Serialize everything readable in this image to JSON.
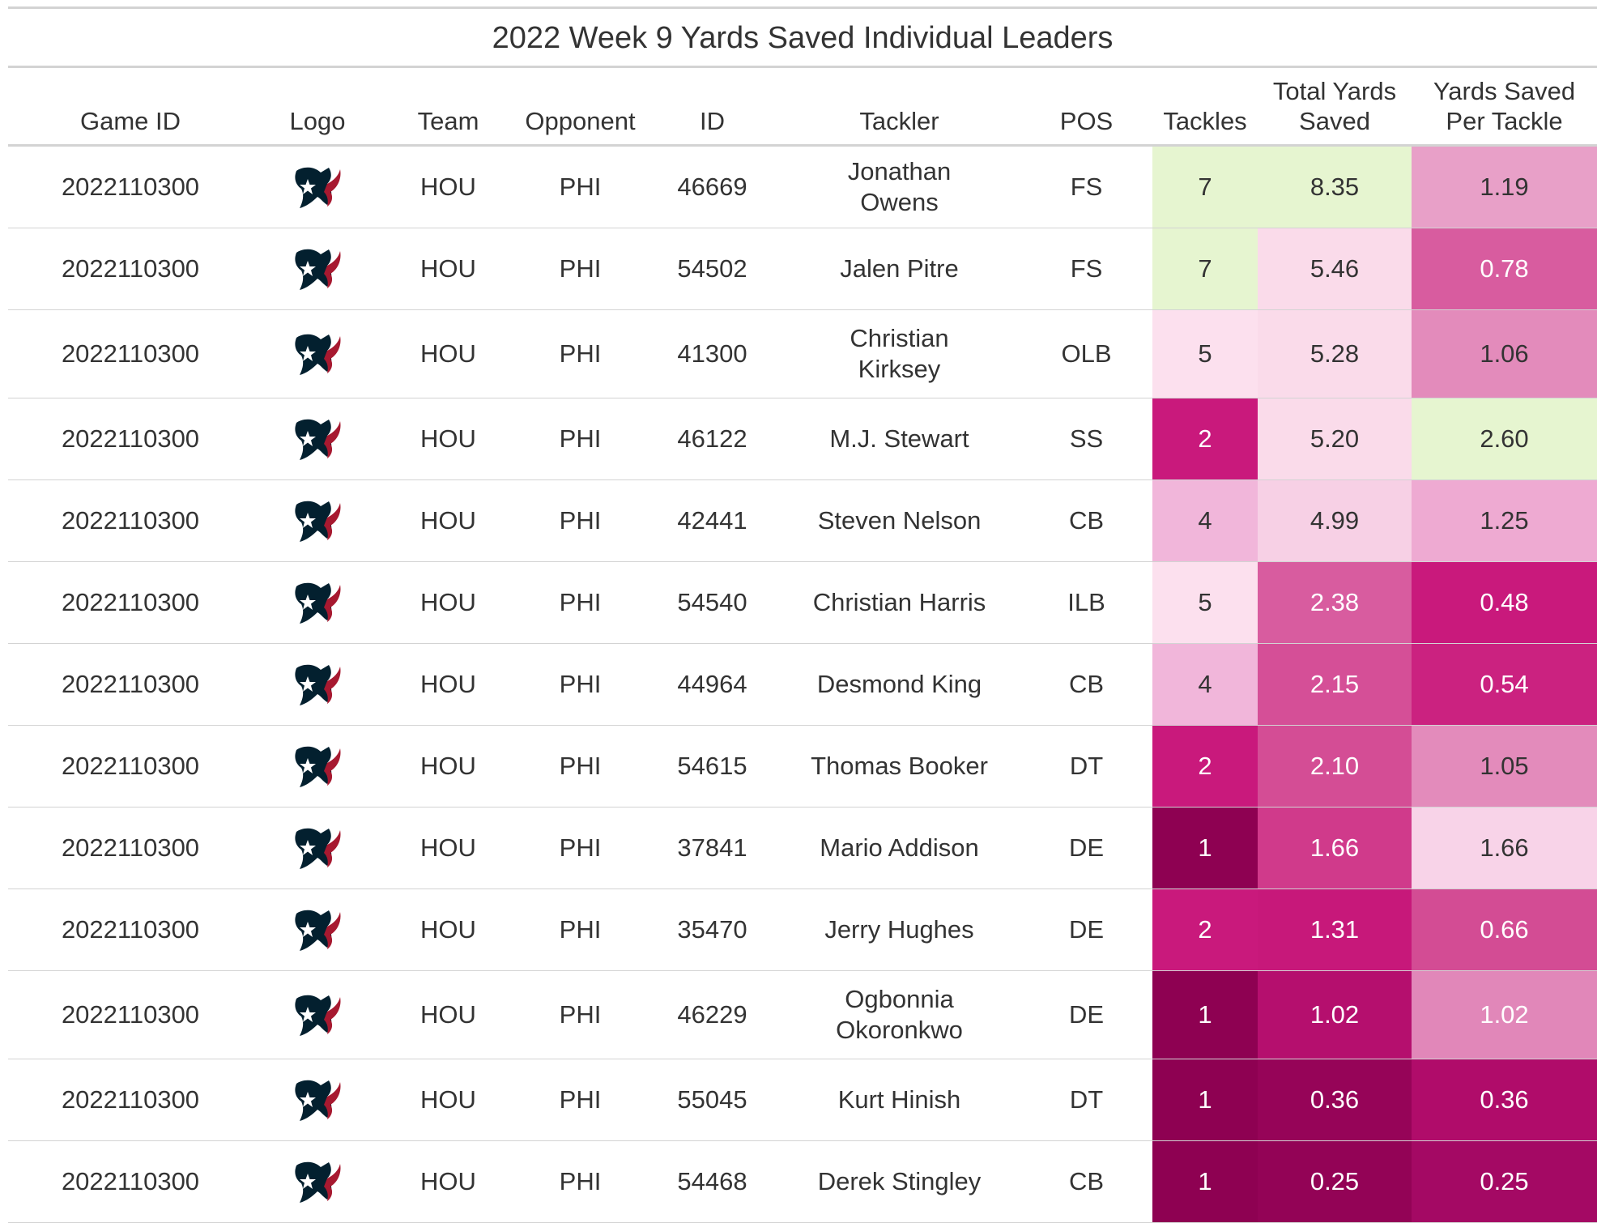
{
  "chart_data": {
    "type": "table",
    "title": "2022 Week 9 Yards Saved Individual Leaders",
    "columns": [
      "Game ID",
      "Logo",
      "Team",
      "Opponent",
      "ID",
      "Tackler",
      "POS",
      "Tackles",
      "Total Yards Saved",
      "Yards Saved Per Tackle"
    ],
    "rows": [
      {
        "game_id": "2022110300",
        "logo": "texans-logo",
        "team": "HOU",
        "opponent": "PHI",
        "id": "46669",
        "tackler": "Jonathan Owens",
        "pos": "FS",
        "tackles": "7",
        "total_yards_saved": "8.35",
        "yards_per_tackle": "1.19",
        "c1": "#e6f5d0",
        "c2": "#e6f5d0",
        "c3": "#e8a0c8",
        "t1": "#333333",
        "t2": "#333333",
        "t3": "#333333"
      },
      {
        "game_id": "2022110300",
        "logo": "texans-logo",
        "team": "HOU",
        "opponent": "PHI",
        "id": "54502",
        "tackler": "Jalen Pitre",
        "pos": "FS",
        "tackles": "7",
        "total_yards_saved": "5.46",
        "yards_per_tackle": "0.78",
        "c1": "#e6f5d0",
        "c2": "#fadbea",
        "c3": "#d85c9f",
        "t1": "#333333",
        "t2": "#333333",
        "t3": "#ffffff"
      },
      {
        "game_id": "2022110300",
        "logo": "texans-logo",
        "team": "HOU",
        "opponent": "PHI",
        "id": "41300",
        "tackler": "Christian Kirksey",
        "pos": "OLB",
        "tackles": "5",
        "total_yards_saved": "5.28",
        "yards_per_tackle": "1.06",
        "c1": "#fce0ee",
        "c2": "#fadbea",
        "c3": "#e38bbb",
        "t1": "#333333",
        "t2": "#333333",
        "t3": "#333333"
      },
      {
        "game_id": "2022110300",
        "logo": "texans-logo",
        "team": "HOU",
        "opponent": "PHI",
        "id": "46122",
        "tackler": "M.J. Stewart",
        "pos": "SS",
        "tackles": "2",
        "total_yards_saved": "5.20",
        "yards_per_tackle": "2.60",
        "c1": "#c9197c",
        "c2": "#fadbea",
        "c3": "#e6f5d0",
        "t1": "#ffffff",
        "t2": "#333333",
        "t3": "#333333"
      },
      {
        "game_id": "2022110300",
        "logo": "texans-logo",
        "team": "HOU",
        "opponent": "PHI",
        "id": "42441",
        "tackler": "Steven Nelson",
        "pos": "CB",
        "tackles": "4",
        "total_yards_saved": "4.99",
        "yards_per_tackle": "1.25",
        "c1": "#f1b6da",
        "c2": "#f7d0e5",
        "c3": "#eeaad2",
        "t1": "#333333",
        "t2": "#333333",
        "t3": "#333333"
      },
      {
        "game_id": "2022110300",
        "logo": "texans-logo",
        "team": "HOU",
        "opponent": "PHI",
        "id": "54540",
        "tackler": "Christian Harris",
        "pos": "ILB",
        "tackles": "5",
        "total_yards_saved": "2.38",
        "yards_per_tackle": "0.48",
        "c1": "#fce0ee",
        "c2": "#d85c9f",
        "c3": "#c9197c",
        "t1": "#333333",
        "t2": "#ffffff",
        "t3": "#ffffff"
      },
      {
        "game_id": "2022110300",
        "logo": "texans-logo",
        "team": "HOU",
        "opponent": "PHI",
        "id": "44964",
        "tackler": "Desmond King",
        "pos": "CB",
        "tackles": "4",
        "total_yards_saved": "2.15",
        "yards_per_tackle": "0.54",
        "c1": "#f1b6da",
        "c2": "#d54f97",
        "c3": "#cb2280",
        "t1": "#333333",
        "t2": "#ffffff",
        "t3": "#ffffff"
      },
      {
        "game_id": "2022110300",
        "logo": "texans-logo",
        "team": "HOU",
        "opponent": "PHI",
        "id": "54615",
        "tackler": "Thomas Booker",
        "pos": "DT",
        "tackles": "2",
        "total_yards_saved": "2.10",
        "yards_per_tackle": "1.05",
        "c1": "#c9197c",
        "c2": "#d44d95",
        "c3": "#e38bbb",
        "t1": "#ffffff",
        "t2": "#ffffff",
        "t3": "#333333"
      },
      {
        "game_id": "2022110300",
        "logo": "texans-logo",
        "team": "HOU",
        "opponent": "PHI",
        "id": "37841",
        "tackler": "Mario Addison",
        "pos": "DE",
        "tackles": "1",
        "total_yards_saved": "1.66",
        "yards_per_tackle": "1.66",
        "c1": "#8e0152",
        "c2": "#d03a8b",
        "c3": "#f8d3e8",
        "t1": "#ffffff",
        "t2": "#ffffff",
        "t3": "#333333"
      },
      {
        "game_id": "2022110300",
        "logo": "texans-logo",
        "team": "HOU",
        "opponent": "PHI",
        "id": "35470",
        "tackler": "Jerry Hughes",
        "pos": "DE",
        "tackles": "2",
        "total_yards_saved": "1.31",
        "yards_per_tackle": "0.66",
        "c1": "#c9197c",
        "c2": "#c7187a",
        "c3": "#d34c94",
        "t1": "#ffffff",
        "t2": "#ffffff",
        "t3": "#ffffff"
      },
      {
        "game_id": "2022110300",
        "logo": "texans-logo",
        "team": "HOU",
        "opponent": "PHI",
        "id": "46229",
        "tackler": "Ogbonnia Okoronkwo",
        "pos": "DE",
        "tackles": "1",
        "total_yards_saved": "1.02",
        "yards_per_tackle": "1.02",
        "c1": "#8e0152",
        "c2": "#b50f6e",
        "c3": "#e187b9",
        "t1": "#ffffff",
        "t2": "#ffffff",
        "t3": "#ffffff"
      },
      {
        "game_id": "2022110300",
        "logo": "texans-logo",
        "team": "HOU",
        "opponent": "PHI",
        "id": "55045",
        "tackler": "Kurt Hinish",
        "pos": "DT",
        "tackles": "1",
        "total_yards_saved": "0.36",
        "yards_per_tackle": "0.36",
        "c1": "#8e0152",
        "c2": "#960458",
        "c3": "#b00c6a",
        "t1": "#ffffff",
        "t2": "#ffffff",
        "t3": "#ffffff"
      },
      {
        "game_id": "2022110300",
        "logo": "texans-logo",
        "team": "HOU",
        "opponent": "PHI",
        "id": "54468",
        "tackler": "Derek Stingley",
        "pos": "CB",
        "tackles": "1",
        "total_yards_saved": "0.25",
        "yards_per_tackle": "0.25",
        "c1": "#8e0152",
        "c2": "#930356",
        "c3": "#a40964",
        "t1": "#ffffff",
        "t2": "#ffffff",
        "t3": "#ffffff"
      }
    ]
  },
  "colors": {
    "low": "#8e0152",
    "mid": "#f7f7f7",
    "high": "#e6f5d0",
    "rule": "#d3d3d3",
    "logo_navy": "#03202f",
    "logo_red": "#a71930"
  }
}
